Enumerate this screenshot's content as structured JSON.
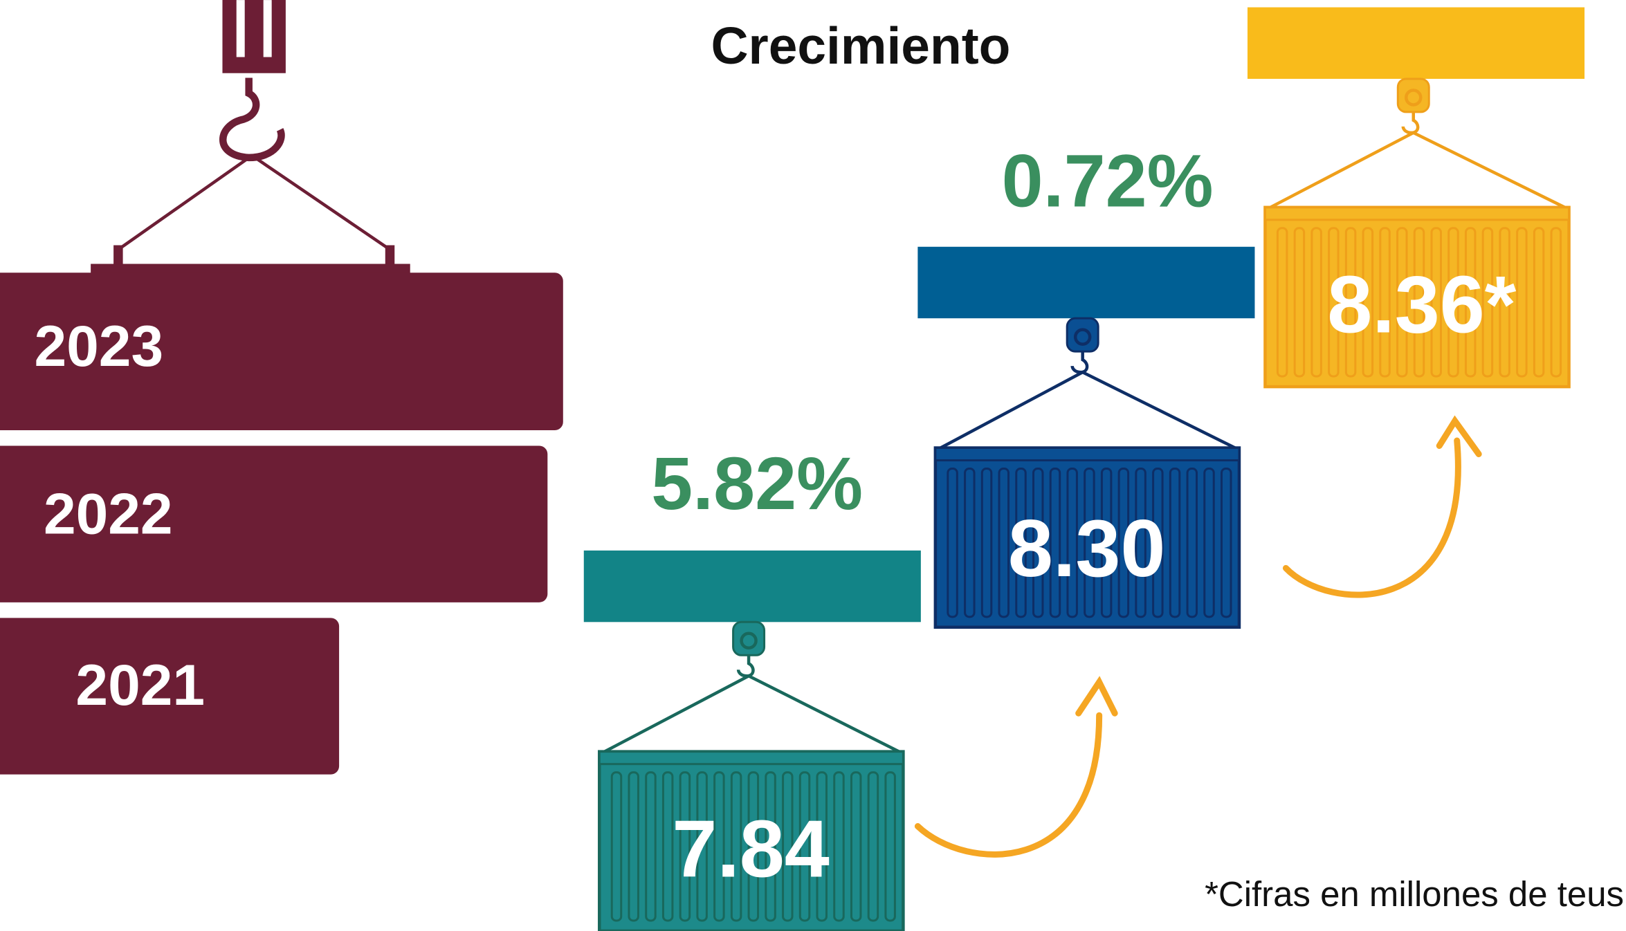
{
  "title": "Crecimiento",
  "years": [
    "2023",
    "2022",
    "2021"
  ],
  "containers": [
    "7.84",
    "8.30",
    "8.36*"
  ],
  "growth": [
    "5.82%",
    "0.72%"
  ],
  "footnote": "*Cifras en millones de teus"
}
